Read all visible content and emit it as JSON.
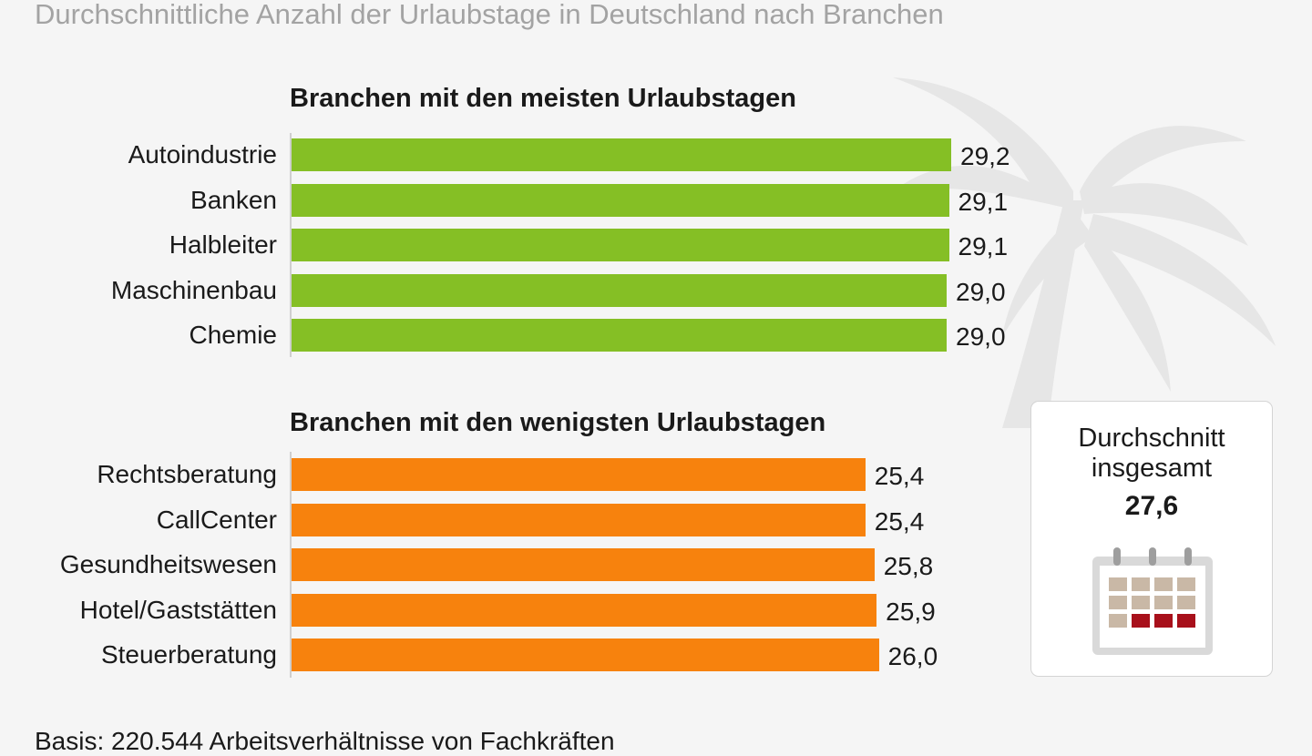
{
  "subtitle": "Durchschnittliche Anzahl der Urlaubstage in Deutschland nach Branchen",
  "footer": {
    "source": "Basis: 220.544 Arbeitsverhältnisse von Fachkräften"
  },
  "summary": {
    "label": "Durchschnitt insgesamt",
    "value": "27,6"
  },
  "colors": {
    "green": "#85bf25",
    "orange": "#f7820d",
    "palm": "#e6e6e6"
  },
  "chart_data": [
    {
      "type": "bar",
      "orientation": "horizontal",
      "title": "Branchen mit den meisten Urlaubstagen",
      "categories": [
        "Autoindustrie",
        "Banken",
        "Halbleiter",
        "Maschinenbau",
        "Chemie"
      ],
      "values": [
        29.2,
        29.1,
        29.1,
        29.0,
        29.0
      ],
      "value_labels": [
        "29,2",
        "29,1",
        "29,1",
        "29,0",
        "29,0"
      ],
      "color": "#85bf25",
      "xlim": [
        0,
        29.2
      ]
    },
    {
      "type": "bar",
      "orientation": "horizontal",
      "title": "Branchen mit den wenigsten Urlaubstagen",
      "categories": [
        "Rechtsberatung",
        "CallCenter",
        "Gesundheitswesen",
        "Hotel/Gaststätten",
        "Steuerberatung"
      ],
      "values": [
        25.4,
        25.4,
        25.8,
        25.9,
        26.0
      ],
      "value_labels": [
        "25,4",
        "25,4",
        "25,8",
        "25,9",
        "26,0"
      ],
      "color": "#f7820d",
      "xlim": [
        0,
        29.2
      ]
    }
  ]
}
